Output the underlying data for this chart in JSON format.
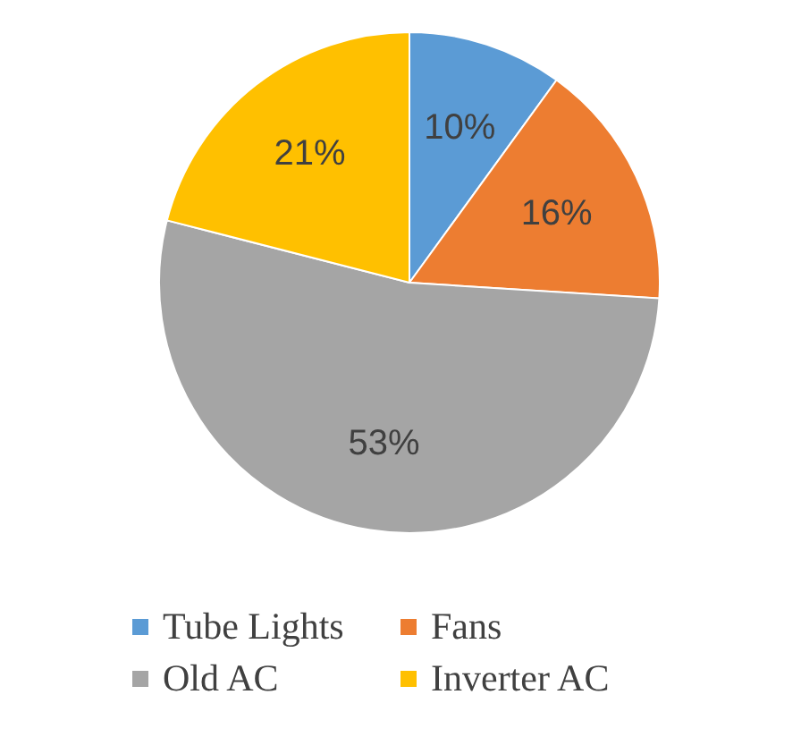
{
  "chart_data": {
    "type": "pie",
    "categories": [
      "Tube Lights",
      "Fans",
      "Old AC",
      "Inverter AC"
    ],
    "values": [
      10,
      16,
      53,
      21
    ],
    "colors": [
      "#5b9bd5",
      "#ed7d31",
      "#a5a5a5",
      "#ffc000"
    ],
    "value_labels": [
      "10%",
      "16%",
      "53%",
      "21%"
    ],
    "legend": "bottom"
  }
}
